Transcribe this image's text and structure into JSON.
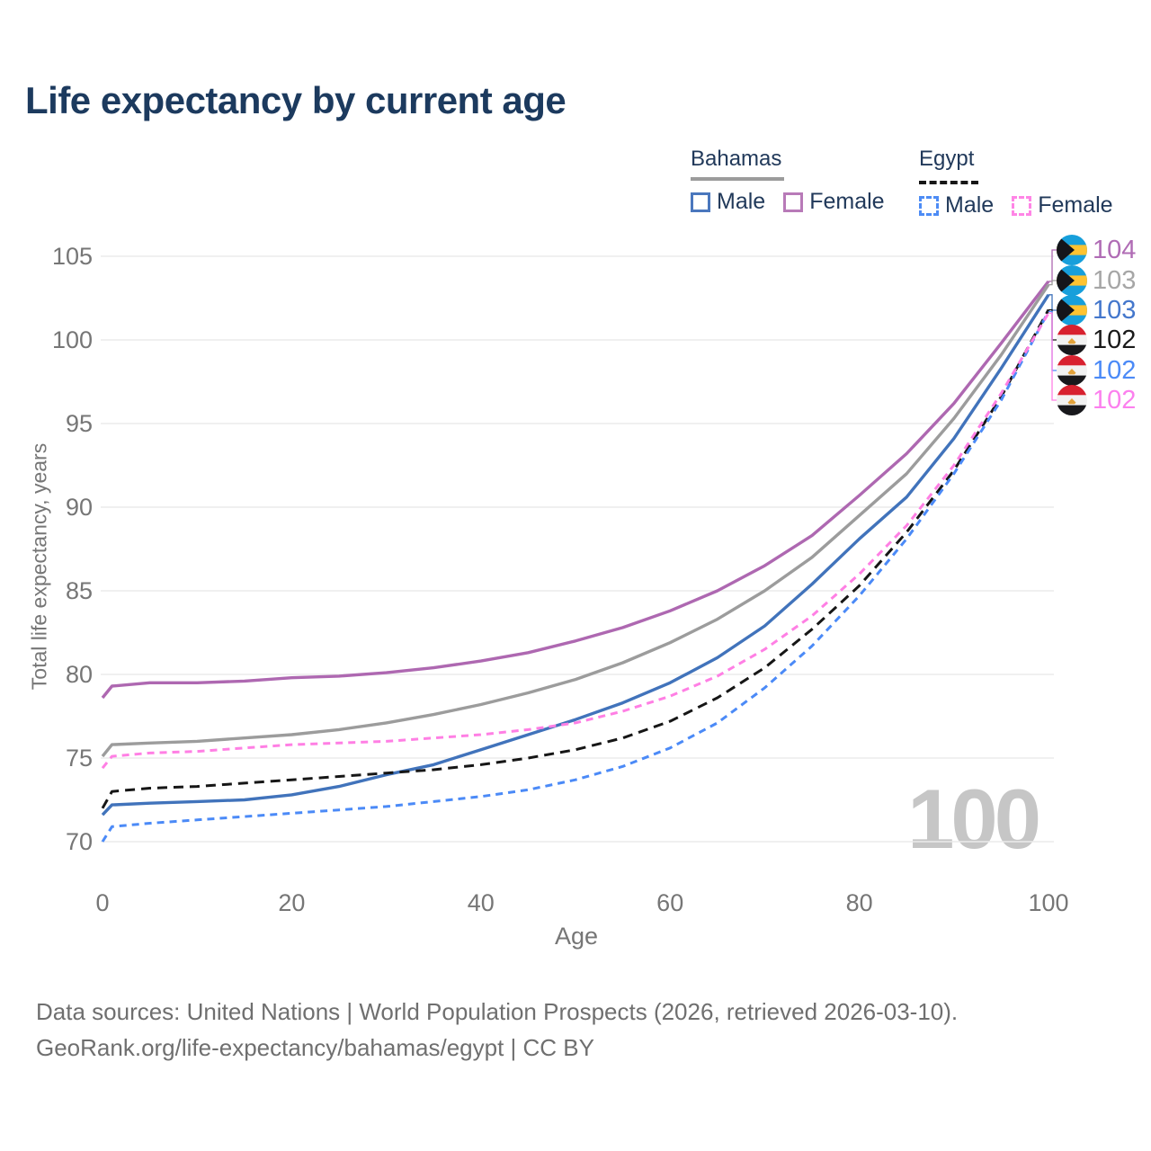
{
  "title": "Life expectancy by current age",
  "legend": {
    "groups": [
      {
        "title": "Bahamas",
        "underline_color": "#9b9b9b",
        "underline_style": "solid",
        "items": [
          {
            "label": "Male",
            "color": "#4a77bd",
            "dashed": false
          },
          {
            "label": "Female",
            "color": "#b87ab8",
            "dashed": false
          }
        ]
      },
      {
        "title": "Egypt",
        "underline_color": "#161616",
        "underline_style": "dashed",
        "items": [
          {
            "label": "Male",
            "color": "#4d8cf5",
            "dashed": true
          },
          {
            "label": "Female",
            "color": "#ff85e6",
            "dashed": true
          }
        ]
      }
    ]
  },
  "chart_data": {
    "type": "line",
    "title": "Life expectancy by current age",
    "xlabel": "Age",
    "ylabel": "Total life expectancy, years",
    "x_ticks": [
      0,
      20,
      40,
      60,
      80,
      100
    ],
    "y_ticks": [
      70,
      75,
      80,
      85,
      90,
      95,
      100,
      105
    ],
    "xlim": [
      0,
      100
    ],
    "ylim": [
      70,
      105
    ],
    "grid": "horizontal-only",
    "hover_age_label": "100",
    "ages": [
      0,
      1,
      5,
      10,
      15,
      20,
      25,
      30,
      35,
      40,
      45,
      50,
      55,
      60,
      65,
      70,
      75,
      80,
      85,
      90,
      95,
      100
    ],
    "series": [
      {
        "id": "bahamas-female",
        "country": "Bahamas",
        "sex": "Female",
        "flag": "bahamas",
        "color": "#ae68b1",
        "label_color": "#b06cb5",
        "dash": false,
        "end_label": "104",
        "values": [
          78.6,
          79.3,
          79.5,
          79.5,
          79.6,
          79.8,
          79.9,
          80.1,
          80.4,
          80.8,
          81.3,
          82.0,
          82.8,
          83.8,
          85.0,
          86.5,
          88.3,
          90.7,
          93.2,
          96.2,
          99.8,
          103.5
        ]
      },
      {
        "id": "bahamas-total",
        "country": "Bahamas",
        "sex": "Both sexes",
        "flag": "bahamas",
        "color": "#9c9c9c",
        "label_color": "#a6a6a6",
        "dash": false,
        "end_label": "103",
        "values": [
          75.1,
          75.8,
          75.9,
          76.0,
          76.2,
          76.4,
          76.7,
          77.1,
          77.6,
          78.2,
          78.9,
          79.7,
          80.7,
          81.9,
          83.3,
          85.0,
          87.0,
          89.5,
          92.0,
          95.3,
          99.1,
          103.3
        ]
      },
      {
        "id": "bahamas-male",
        "country": "Bahamas",
        "sex": "Male",
        "flag": "bahamas",
        "color": "#4173bb",
        "label_color": "#4477cc",
        "dash": false,
        "end_label": "103",
        "values": [
          71.6,
          72.2,
          72.3,
          72.4,
          72.5,
          72.8,
          73.3,
          74.0,
          74.6,
          75.5,
          76.4,
          77.3,
          78.3,
          79.5,
          81.0,
          82.9,
          85.4,
          88.1,
          90.6,
          94.1,
          98.3,
          102.7
        ]
      },
      {
        "id": "egypt-total",
        "country": "Egypt",
        "sex": "Both sexes",
        "flag": "egypt",
        "color": "#161616",
        "label_color": "#1a1a1a",
        "dash": true,
        "dash_pattern": "11 7",
        "end_label": "102",
        "values": [
          72.0,
          73.0,
          73.2,
          73.3,
          73.5,
          73.7,
          73.9,
          74.1,
          74.3,
          74.6,
          75.0,
          75.5,
          76.2,
          77.2,
          78.6,
          80.4,
          82.7,
          85.3,
          88.5,
          92.2,
          96.6,
          101.8
        ]
      },
      {
        "id": "egypt-male",
        "country": "Egypt",
        "sex": "Male",
        "flag": "egypt",
        "color": "#4b8af7",
        "label_color": "#4b8af7",
        "dash": true,
        "dash_pattern": "8 6",
        "end_label": "102",
        "values": [
          70.0,
          70.9,
          71.1,
          71.3,
          71.5,
          71.7,
          71.9,
          72.1,
          72.4,
          72.7,
          73.1,
          73.7,
          74.5,
          75.6,
          77.1,
          79.2,
          81.7,
          84.7,
          88.1,
          92.0,
          96.4,
          101.7
        ]
      },
      {
        "id": "egypt-female",
        "country": "Egypt",
        "sex": "Female",
        "flag": "egypt",
        "color": "#ff7fe4",
        "label_color": "#fc80ee",
        "dash": true,
        "dash_pattern": "8 6",
        "end_label": "102",
        "values": [
          74.4,
          75.1,
          75.3,
          75.4,
          75.6,
          75.8,
          75.9,
          76.0,
          76.2,
          76.4,
          76.7,
          77.1,
          77.8,
          78.7,
          79.9,
          81.5,
          83.5,
          86.0,
          88.9,
          92.5,
          96.8,
          101.6
        ]
      }
    ]
  },
  "footer": {
    "line1": "Data sources: United Nations | World Population Prospects (2026, retrieved 2026-03-10).",
    "line2": "GeoRank.org/life-expectancy/bahamas/egypt | CC BY"
  }
}
